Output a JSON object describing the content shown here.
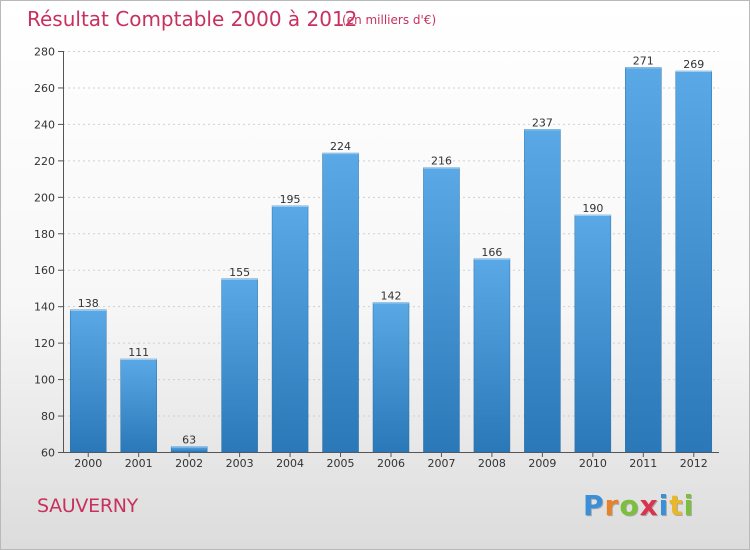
{
  "title": "Résultat Comptable 2000 à 2012",
  "subtitle": "(en milliers d'€)",
  "place": "SAUVERNY",
  "logo": {
    "text": "Proxiti",
    "letters": [
      {
        "ch": "P",
        "color": "#3a8fd6"
      },
      {
        "ch": "r",
        "color": "#e8822a"
      },
      {
        "ch": "o",
        "color": "#7cbf3a"
      },
      {
        "ch": "x",
        "color": "#d9344f"
      },
      {
        "ch": "i",
        "color": "#3a8fd6"
      },
      {
        "ch": "t",
        "color": "#e8b72a"
      },
      {
        "ch": "i",
        "color": "#7cbf3a"
      }
    ]
  },
  "colors": {
    "accent": "#c8315f",
    "bar_top": "#5aa9e6",
    "bar_bottom": "#2b78b8"
  },
  "chart_data": {
    "type": "bar",
    "categories": [
      "2000",
      "2001",
      "2002",
      "2003",
      "2004",
      "2005",
      "2006",
      "2007",
      "2008",
      "2009",
      "2010",
      "2011",
      "2012"
    ],
    "values": [
      138,
      111,
      63,
      155,
      195,
      224,
      142,
      216,
      166,
      237,
      190,
      271,
      269
    ],
    "ylim": [
      60,
      280
    ],
    "yticks": [
      60,
      80,
      100,
      120,
      140,
      160,
      180,
      200,
      220,
      240,
      260,
      280
    ],
    "grid": true,
    "xlabel": "",
    "ylabel": ""
  }
}
